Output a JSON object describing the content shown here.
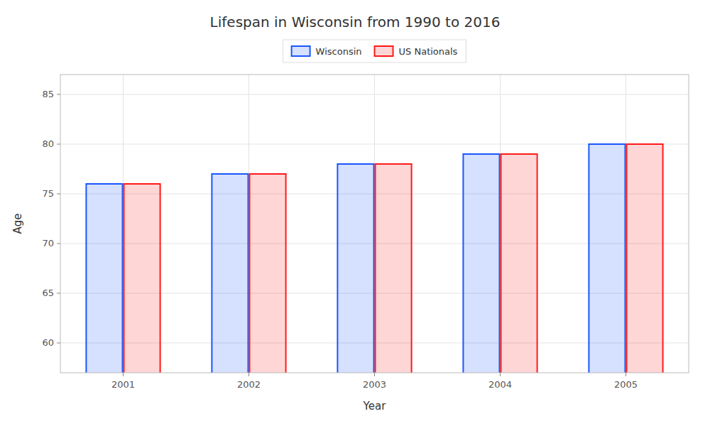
{
  "chart_data": {
    "type": "bar",
    "title": "Lifespan in Wisconsin from 1990 to 2016",
    "xlabel": "Year",
    "ylabel": "Age",
    "categories": [
      "2001",
      "2002",
      "2003",
      "2004",
      "2005"
    ],
    "series": [
      {
        "name": "Wisconsin",
        "color": "#1a56ff",
        "values": [
          76.0,
          77.0,
          78.0,
          79.0,
          80.0
        ]
      },
      {
        "name": "US Nationals",
        "color": "#ff1a1a",
        "values": [
          76.0,
          77.0,
          78.0,
          79.0,
          80.0
        ]
      }
    ],
    "ylim": [
      57,
      87
    ],
    "yticks": [
      60,
      65,
      70,
      75,
      80,
      85
    ],
    "grid": true,
    "legend": "top"
  }
}
